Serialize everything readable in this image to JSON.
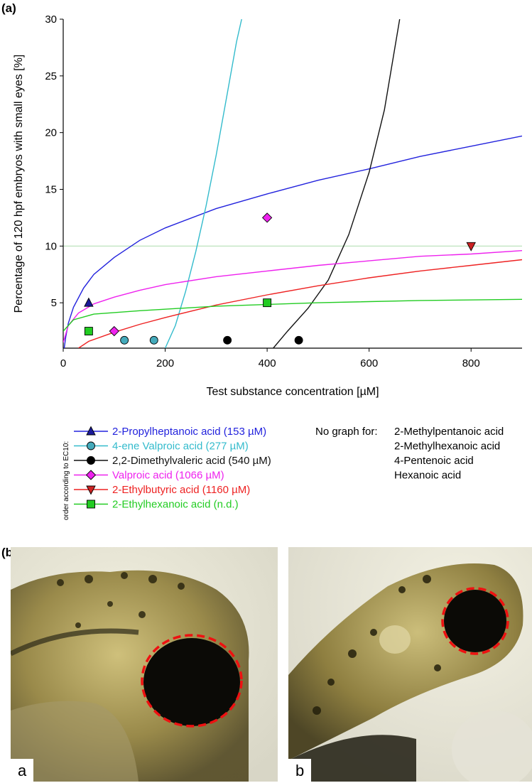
{
  "panel_a_label": "(a)",
  "panel_b_label": "(b)",
  "chart_data": {
    "type": "scatter",
    "xlabel": "Test substance concentration [µM]",
    "ylabel": "Percentage of 120 hpf embryos with small eyes [%]",
    "xlim": [
      0,
      900
    ],
    "ylim": [
      1,
      30
    ],
    "x_ticks": [
      0,
      200,
      400,
      600,
      800
    ],
    "y_ticks": [
      5,
      10,
      15,
      20,
      25,
      30
    ],
    "reference_line": {
      "y": 10,
      "color": "#b5e0b5"
    },
    "legend_caption": "order according to EC10:",
    "no_graph_label": "No graph for:",
    "no_graph_items": [
      "2-Methylpentanoic acid",
      "2-Methylhexanoic acid",
      "4-Pentenoic acid",
      "Hexanoic acid"
    ],
    "series": [
      {
        "name": "2-Propylheptanoic acid (153 µM)",
        "color": "#2222dd",
        "marker": "triangle-up",
        "marker_fill": "#1a1a99",
        "points": [
          [
            50,
            5
          ]
        ],
        "curve": [
          [
            2,
            1
          ],
          [
            5,
            2
          ],
          [
            10,
            3.2
          ],
          [
            20,
            4.6
          ],
          [
            40,
            6.3
          ],
          [
            60,
            7.5
          ],
          [
            100,
            9
          ],
          [
            150,
            10.5
          ],
          [
            200,
            11.6
          ],
          [
            300,
            13.3
          ],
          [
            400,
            14.6
          ],
          [
            500,
            15.8
          ],
          [
            600,
            16.8
          ],
          [
            700,
            17.9
          ],
          [
            800,
            18.8
          ],
          [
            900,
            19.7
          ]
        ]
      },
      {
        "name": "4-ene Valproic acid (277 µM)",
        "color": "#33bbcc",
        "marker": "circle",
        "marker_fill": "#44aabb",
        "points": [
          [
            120,
            1.7
          ],
          [
            178,
            1.7
          ]
        ],
        "curve": [
          [
            200,
            1
          ],
          [
            220,
            3
          ],
          [
            240,
            6
          ],
          [
            260,
            9.5
          ],
          [
            280,
            13.5
          ],
          [
            300,
            18
          ],
          [
            320,
            23
          ],
          [
            340,
            28
          ],
          [
            350,
            30
          ]
        ]
      },
      {
        "name": "2,2-Dimethylvaleric acid (540 µM)",
        "color": "#111111",
        "marker": "circle",
        "marker_fill": "#000000",
        "points": [
          [
            322,
            1.7
          ],
          [
            462,
            1.7
          ]
        ],
        "curve": [
          [
            412,
            1
          ],
          [
            440,
            2.5
          ],
          [
            480,
            4.5
          ],
          [
            520,
            7
          ],
          [
            560,
            11
          ],
          [
            600,
            16.5
          ],
          [
            630,
            22
          ],
          [
            660,
            30
          ]
        ]
      },
      {
        "name": "Valproic acid (1066 µM)",
        "color": "#ee22ee",
        "marker": "diamond",
        "marker_fill": "#ee22ee",
        "points": [
          [
            100,
            2.5
          ],
          [
            400,
            12.5
          ]
        ],
        "curve": [
          [
            0,
            1.5
          ],
          [
            10,
            3
          ],
          [
            30,
            4.1
          ],
          [
            60,
            4.9
          ],
          [
            100,
            5.5
          ],
          [
            150,
            6.1
          ],
          [
            200,
            6.6
          ],
          [
            300,
            7.3
          ],
          [
            400,
            7.8
          ],
          [
            500,
            8.3
          ],
          [
            600,
            8.7
          ],
          [
            700,
            9.1
          ],
          [
            800,
            9.3
          ],
          [
            900,
            9.6
          ]
        ]
      },
      {
        "name": "2-Ethylbutyric acid (1160 µM)",
        "color": "#ee2222",
        "marker": "triangle-down",
        "marker_fill": "#cc2222",
        "points": [
          [
            800,
            10
          ]
        ],
        "curve": [
          [
            30,
            1
          ],
          [
            50,
            1.6
          ],
          [
            100,
            2.4
          ],
          [
            150,
            3.1
          ],
          [
            200,
            3.7
          ],
          [
            300,
            4.8
          ],
          [
            400,
            5.7
          ],
          [
            500,
            6.5
          ],
          [
            600,
            7.2
          ],
          [
            700,
            7.8
          ],
          [
            800,
            8.3
          ],
          [
            900,
            8.8
          ]
        ]
      },
      {
        "name": "2-Ethylhexanoic acid (n.d.)",
        "color": "#22cc22",
        "marker": "square",
        "marker_fill": "#22cc22",
        "points": [
          [
            50,
            2.5
          ],
          [
            400,
            5
          ]
        ],
        "curve": [
          [
            0,
            2.5
          ],
          [
            20,
            3.5
          ],
          [
            60,
            4
          ],
          [
            150,
            4.3
          ],
          [
            300,
            4.7
          ],
          [
            500,
            5
          ],
          [
            700,
            5.2
          ],
          [
            900,
            5.3
          ]
        ]
      }
    ]
  },
  "photo_a_letter": "a",
  "photo_b_letter": "b"
}
